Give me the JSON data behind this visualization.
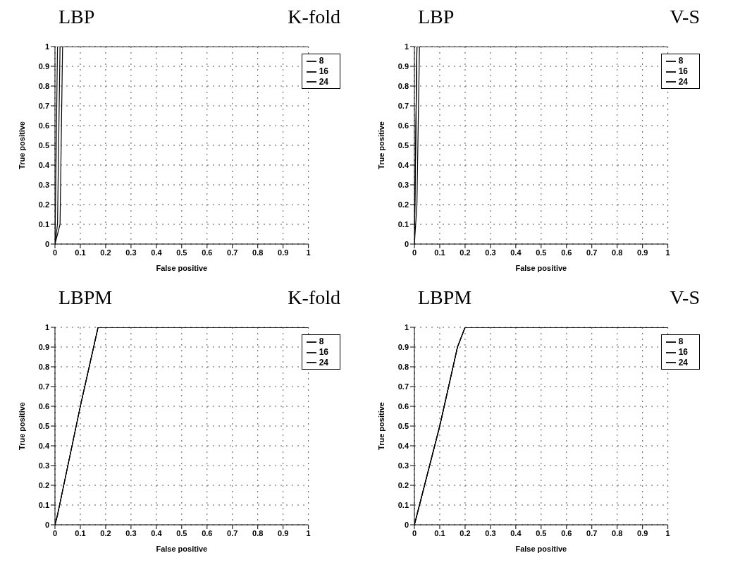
{
  "chart_data": [
    {
      "type": "line",
      "title": "LBP",
      "subtitle": "K-fold",
      "xlabel": "False positive",
      "ylabel": "True positive",
      "xlim": [
        0,
        1
      ],
      "ylim": [
        0,
        1
      ],
      "xticks": [
        0,
        0.1,
        0.2,
        0.3,
        0.4,
        0.5,
        0.6,
        0.7,
        0.8,
        0.9,
        1
      ],
      "yticks": [
        0,
        0.1,
        0.2,
        0.3,
        0.4,
        0.5,
        0.6,
        0.7,
        0.8,
        0.9,
        1
      ],
      "grid": true,
      "legend": "top right",
      "marker": "none",
      "line_style": "solid",
      "series": [
        {
          "name": "8",
          "color": "#000000",
          "x": [
            0,
            0.02,
            0.03,
            1
          ],
          "values": [
            0,
            0.1,
            1,
            1
          ]
        },
        {
          "name": "16",
          "color": "#000000",
          "x": [
            0,
            0.01,
            0.02,
            1
          ],
          "values": [
            0,
            0.1,
            1,
            1
          ]
        },
        {
          "name": "24",
          "color": "#000000",
          "x": [
            0,
            0.01,
            1
          ],
          "values": [
            0,
            1,
            1
          ]
        }
      ]
    },
    {
      "type": "line",
      "title": "LBP",
      "subtitle": "V-S",
      "xlabel": "False positive",
      "ylabel": "True positive",
      "xlim": [
        0,
        1
      ],
      "ylim": [
        0,
        1
      ],
      "xticks": [
        0,
        0.1,
        0.2,
        0.3,
        0.4,
        0.5,
        0.6,
        0.7,
        0.8,
        0.9,
        1
      ],
      "yticks": [
        0,
        0.1,
        0.2,
        0.3,
        0.4,
        0.5,
        0.6,
        0.7,
        0.8,
        0.9,
        1
      ],
      "grid": true,
      "legend": "top right",
      "marker": "none",
      "line_style": "solid",
      "series": [
        {
          "name": "8",
          "color": "#000000",
          "x": [
            0,
            0.01,
            0.02,
            1
          ],
          "values": [
            0,
            0.2,
            1,
            1
          ]
        },
        {
          "name": "16",
          "color": "#000000",
          "x": [
            0,
            0.01,
            1
          ],
          "values": [
            0,
            1,
            1
          ]
        },
        {
          "name": "24",
          "color": "#000000",
          "x": [
            0,
            0.01,
            1
          ],
          "values": [
            0,
            1,
            1
          ]
        }
      ]
    },
    {
      "type": "line",
      "title": "LBPM",
      "subtitle": "K-fold",
      "xlabel": "False positive",
      "ylabel": "True positive",
      "xlim": [
        0,
        1
      ],
      "ylim": [
        0,
        1
      ],
      "xticks": [
        0,
        0.1,
        0.2,
        0.3,
        0.4,
        0.5,
        0.6,
        0.7,
        0.8,
        0.9,
        1
      ],
      "yticks": [
        0,
        0.1,
        0.2,
        0.3,
        0.4,
        0.5,
        0.6,
        0.7,
        0.8,
        0.9,
        1
      ],
      "grid": true,
      "legend": "top right",
      "marker": "none",
      "line_style": "solid",
      "series": [
        {
          "name": "8",
          "color": "#000000",
          "x": [
            0,
            0.01,
            0.1,
            0.17,
            1
          ],
          "values": [
            0,
            0.05,
            0.6,
            1,
            1
          ]
        },
        {
          "name": "16",
          "color": "#000000",
          "x": [
            0,
            0.01,
            0.1,
            0.17,
            1
          ],
          "values": [
            0,
            0.05,
            0.6,
            1,
            1
          ]
        },
        {
          "name": "24",
          "color": "#000000",
          "x": [
            0,
            0.01,
            0.1,
            0.17,
            1
          ],
          "values": [
            0,
            0.05,
            0.6,
            1,
            1
          ]
        }
      ]
    },
    {
      "type": "line",
      "title": "LBPM",
      "subtitle": "V-S",
      "xlabel": "False positive",
      "ylabel": "True positive",
      "xlim": [
        0,
        1
      ],
      "ylim": [
        0,
        1
      ],
      "xticks": [
        0,
        0.1,
        0.2,
        0.3,
        0.4,
        0.5,
        0.6,
        0.7,
        0.8,
        0.9,
        1
      ],
      "yticks": [
        0,
        0.1,
        0.2,
        0.3,
        0.4,
        0.5,
        0.6,
        0.7,
        0.8,
        0.9,
        1
      ],
      "grid": true,
      "legend": "top right",
      "marker": "none",
      "line_style": "solid",
      "series": [
        {
          "name": "8",
          "color": "#000000",
          "x": [
            0,
            0.02,
            0.1,
            0.17,
            0.2,
            1
          ],
          "values": [
            0,
            0.1,
            0.5,
            0.9,
            1,
            1
          ]
        },
        {
          "name": "16",
          "color": "#000000",
          "x": [
            0,
            0.02,
            0.1,
            0.17,
            0.2,
            1
          ],
          "values": [
            0,
            0.1,
            0.5,
            0.9,
            1,
            1
          ]
        },
        {
          "name": "24",
          "color": "#000000",
          "x": [
            0,
            0.02,
            0.1,
            0.17,
            0.2,
            1
          ],
          "values": [
            0,
            0.1,
            0.5,
            0.9,
            1,
            1
          ]
        }
      ]
    }
  ]
}
